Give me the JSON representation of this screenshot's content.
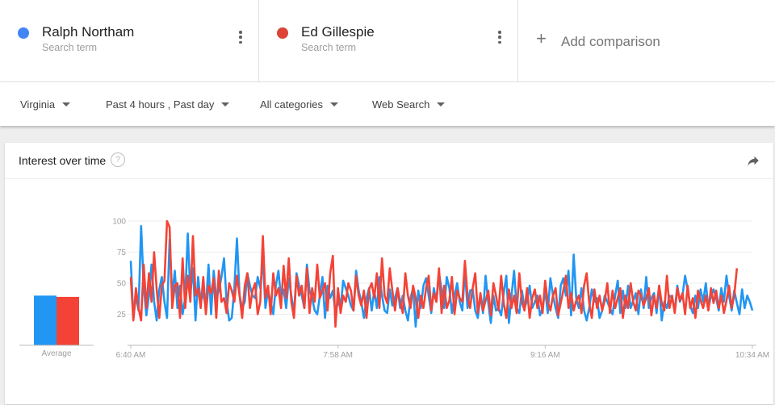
{
  "terms": [
    {
      "name": "Ralph Northam",
      "sub": "Search term",
      "color": "#4285f4"
    },
    {
      "name": "Ed Gillespie",
      "sub": "Search term",
      "color": "#db4437"
    }
  ],
  "add_comparison": "Add comparison",
  "filters": {
    "region": "Virginia",
    "time": "Past 4 hours , Past day",
    "category": "All categories",
    "search_type": "Web Search"
  },
  "card": {
    "title": "Interest over time"
  },
  "chart_data": {
    "type": "line",
    "ylim": [
      0,
      100
    ],
    "yticks": [
      "100",
      "75",
      "50",
      "25"
    ],
    "xticks": [
      "6:40 AM",
      "7:58 AM",
      "9:16 AM",
      "10:34 AM"
    ],
    "average_label": "Average",
    "averages": {
      "Ralph Northam": 40,
      "Ed Gillespie": 39
    },
    "series": [
      {
        "name": "Ralph Northam",
        "color": "#2196f3",
        "values": [
          68,
          22,
          40,
          28,
          96,
          48,
          24,
          40,
          65,
          35,
          20,
          45,
          55,
          35,
          22,
          85,
          40,
          60,
          30,
          48,
          25,
          38,
          90,
          42,
          62,
          20,
          55,
          35,
          42,
          30,
          65,
          25,
          60,
          38,
          44,
          55,
          70,
          35,
          20,
          22,
          46,
          86,
          40,
          30,
          35,
          58,
          48,
          40,
          38,
          55,
          46,
          70,
          30,
          44,
          35,
          25,
          48,
          60,
          38,
          45,
          30,
          54,
          40,
          25,
          58,
          48,
          40,
          30,
          65,
          44,
          38,
          28,
          25,
          40,
          55,
          22,
          48,
          38,
          44,
          26,
          35,
          30,
          52,
          46,
          40,
          32,
          28,
          60,
          44,
          35,
          22,
          38,
          46,
          28,
          44,
          30,
          55,
          40,
          28,
          26,
          45,
          32,
          38,
          46,
          30,
          40,
          28,
          20,
          38,
          46,
          15,
          44,
          30,
          48,
          54,
          40,
          26,
          46,
          35,
          58,
          45,
          30,
          55,
          46,
          26,
          40,
          50,
          35,
          28,
          60,
          30,
          44,
          45,
          28,
          22,
          40,
          26,
          56,
          34,
          18,
          40,
          28,
          30,
          24,
          42,
          56,
          18,
          40,
          60,
          30,
          26,
          44,
          30,
          36,
          48,
          30,
          35,
          40,
          24,
          30,
          44,
          26,
          54,
          40,
          30,
          22,
          48,
          54,
          40,
          60,
          24,
          73,
          38,
          30,
          46,
          28,
          20,
          30,
          45,
          35,
          38,
          22,
          28,
          40,
          35,
          30,
          25,
          40,
          52,
          26,
          44,
          30,
          48,
          30,
          36,
          42,
          25,
          45,
          30,
          55,
          30,
          38,
          42,
          26,
          48,
          20,
          35,
          30,
          40,
          38,
          28,
          48,
          35,
          40,
          56,
          45,
          32,
          26,
          40,
          30,
          45,
          35,
          50,
          30,
          40,
          45,
          38,
          28,
          46,
          35,
          56,
          40,
          28,
          44,
          34,
          25,
          45,
          30,
          40,
          35,
          28
        ]
      },
      {
        "name": "Ed Gillespie",
        "color": "#f44336",
        "values": [
          55,
          20,
          46,
          30,
          20,
          65,
          30,
          58,
          35,
          75,
          45,
          22,
          48,
          52,
          100,
          95,
          30,
          48,
          50,
          22,
          70,
          30,
          56,
          35,
          88,
          40,
          46,
          30,
          55,
          25,
          48,
          42,
          54,
          22,
          60,
          35,
          38,
          26,
          50,
          44,
          35,
          56,
          40,
          22,
          48,
          58,
          30,
          44,
          50,
          25,
          35,
          88,
          38,
          48,
          25,
          58,
          40,
          46,
          30,
          64,
          38,
          70,
          35,
          22,
          56,
          40,
          48,
          30,
          62,
          26,
          46,
          35,
          65,
          38,
          44,
          50,
          28,
          58,
          72,
          15,
          46,
          26,
          40,
          35,
          50,
          44,
          28,
          56,
          40,
          32,
          44,
          22,
          45,
          50,
          38,
          58,
          30,
          70,
          40,
          34,
          62,
          44,
          28,
          46,
          35,
          26,
          58,
          40,
          30,
          48,
          38,
          22,
          40,
          30,
          46,
          56,
          28,
          42,
          35,
          62,
          26,
          48,
          30,
          36,
          55,
          25,
          44,
          38,
          35,
          68,
          40,
          30,
          46,
          58,
          26,
          42,
          28,
          36,
          44,
          24,
          50,
          40,
          28,
          56,
          34,
          22,
          45,
          30,
          40,
          26,
          58,
          35,
          28,
          46,
          22,
          38,
          45,
          30,
          40,
          26,
          52,
          35,
          28,
          40,
          46,
          24,
          34,
          44,
          56,
          30,
          42,
          28,
          36,
          40,
          26,
          48,
          58,
          34,
          22,
          45,
          30,
          40,
          28,
          36,
          50,
          26,
          44,
          30,
          38,
          46,
          22,
          40,
          30,
          50,
          35,
          28,
          44,
          40,
          32,
          38,
          46,
          24,
          40,
          30,
          48,
          34,
          28,
          56,
          30,
          40,
          26,
          46,
          36,
          42,
          25,
          48,
          30,
          38,
          22,
          44,
          36,
          30,
          40,
          28,
          46,
          34,
          44,
          30,
          40,
          26,
          36,
          48,
          30,
          40,
          62
        ]
      }
    ]
  }
}
